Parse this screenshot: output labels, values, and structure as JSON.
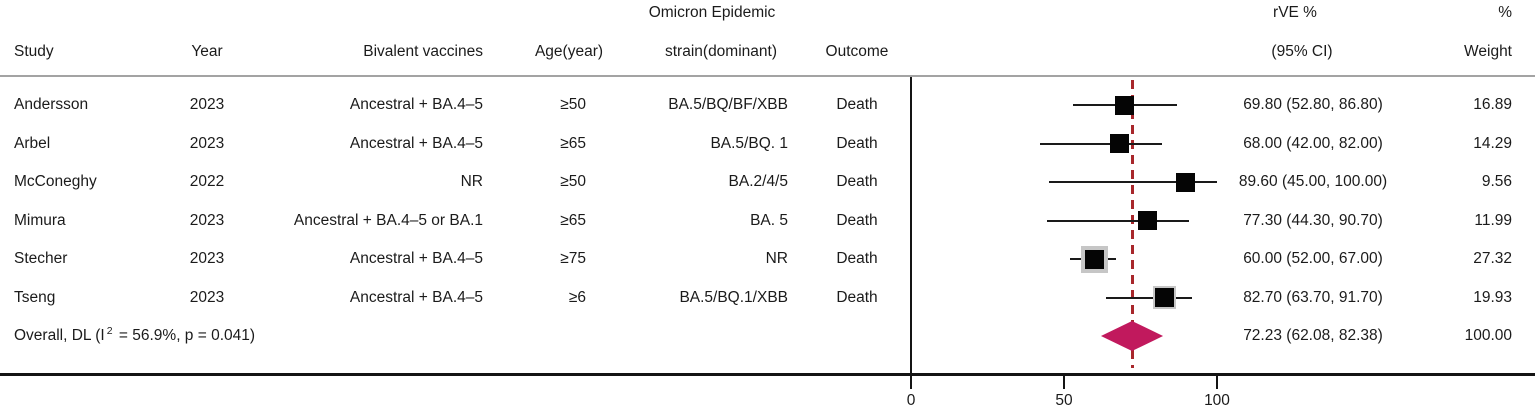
{
  "figure": {
    "headers": {
      "study": "Study",
      "year": "Year",
      "vaccine": "Bivalent vaccines",
      "age": "Age(year)",
      "strain_top": "Omicron Epidemic",
      "strain_bottom": "strain(dominant)",
      "outcome": "Outcome",
      "rve_top": "rVE %",
      "rve_bottom": "(95% CI)",
      "weight_top": "%",
      "weight_bottom": "Weight"
    },
    "colors": {
      "text": "#1b1b1b",
      "header_rule": "#a3a3a3",
      "axis_rule": "#141414",
      "whisker": "#1a1a1a",
      "marker": "#050505",
      "weight_box": "#c6c6c6",
      "diamond": "#c1195d",
      "reference_line": "#a8272b"
    }
  },
  "chart_data": {
    "type": "forest",
    "x_axis": {
      "ticks": [
        0,
        50,
        100
      ],
      "tick_labels": [
        "0",
        "50",
        "100"
      ]
    },
    "reference_line_value": 72.23,
    "studies": [
      {
        "study": "Andersson",
        "year": "2023",
        "vaccine": "Ancestral + BA.4–5",
        "age": "≥50",
        "strain": "BA.5/BQ/BF/XBB",
        "outcome": "Death",
        "est": 69.8,
        "lo": 52.8,
        "hi": 86.8,
        "ci_text": "69.80 (52.80, 86.80)",
        "weight": 16.89,
        "weight_text": "16.89"
      },
      {
        "study": "Arbel",
        "year": "2023",
        "vaccine": "Ancestral + BA.4–5",
        "age": "≥65",
        "strain": "BA.5/BQ. 1",
        "outcome": "Death",
        "est": 68.0,
        "lo": 42.0,
        "hi": 82.0,
        "ci_text": "68.00 (42.00, 82.00)",
        "weight": 14.29,
        "weight_text": "14.29"
      },
      {
        "study": "McConeghy",
        "year": "2022",
        "vaccine": "NR",
        "age": "≥50",
        "strain": "BA.2/4/5",
        "outcome": "Death",
        "est": 89.6,
        "lo": 45.0,
        "hi": 100.0,
        "ci_text": "89.60 (45.00, 100.00)",
        "weight": 9.56,
        "weight_text": "9.56"
      },
      {
        "study": "Mimura",
        "year": "2023",
        "vaccine": "Ancestral + BA.4–5 or BA.1",
        "age": "≥65",
        "strain": "BA. 5",
        "outcome": "Death",
        "est": 77.3,
        "lo": 44.3,
        "hi": 90.7,
        "ci_text": "77.30 (44.30, 90.70)",
        "weight": 11.99,
        "weight_text": "11.99"
      },
      {
        "study": "Stecher",
        "year": "2023",
        "vaccine": "Ancestral + BA.4–5",
        "age": "≥75",
        "strain": "NR",
        "outcome": "Death",
        "est": 60.0,
        "lo": 52.0,
        "hi": 67.0,
        "ci_text": "60.00 (52.00, 67.00)",
        "weight": 27.32,
        "weight_text": "27.32"
      },
      {
        "study": "Tseng",
        "year": "2023",
        "vaccine": "Ancestral + BA.4–5",
        "age": "≥6",
        "strain": "BA.5/BQ.1/XBB",
        "outcome": "Death",
        "est": 82.7,
        "lo": 63.7,
        "hi": 91.7,
        "ci_text": "82.70 (63.70, 91.70)",
        "weight": 19.93,
        "weight_text": "19.93"
      }
    ],
    "overall": {
      "label_prefix": "Overall, DL (I",
      "label_sup": "2",
      "label_suffix": " = 56.9%, p = 0.041)",
      "model": "DL",
      "i_squared": "56.9%",
      "p_value": "0.041",
      "est": 72.23,
      "lo": 62.08,
      "hi": 82.38,
      "ci_text": "72.23 (62.08, 82.38)",
      "weight_text": "100.00"
    }
  }
}
